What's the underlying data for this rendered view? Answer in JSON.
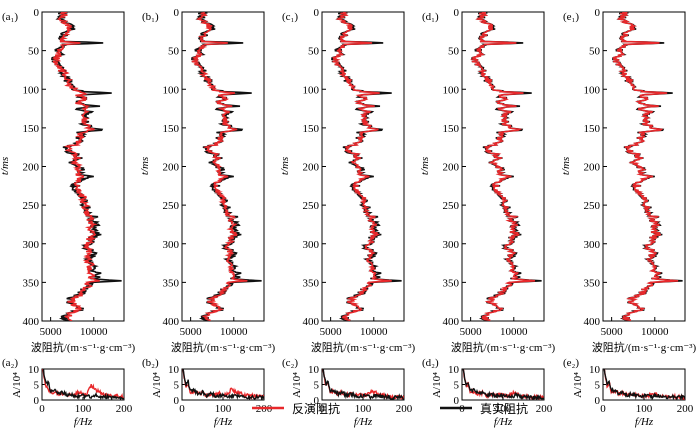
{
  "colors": {
    "inverted": "#e8282b",
    "true": "#111111"
  },
  "legend": {
    "inverted_label": "反演阻抗",
    "true_label": "真实阻抗"
  },
  "impedance_axis": {
    "ylabel": "t/ms",
    "yticks": [
      "0",
      "50",
      "100",
      "150",
      "200",
      "250",
      "300",
      "350",
      "400"
    ],
    "xlabel": "波阻抗/(m·s⁻¹·g·cm⁻³)",
    "xticks": [
      "5000",
      "10000"
    ]
  },
  "spectrum_axis": {
    "ylabel": "A/10⁴",
    "yticks": [
      "0",
      "5",
      "10"
    ],
    "xlabel": "f/Hz",
    "xticks": [
      "0",
      "100",
      "200"
    ]
  },
  "panels": [
    {
      "top_label": "(a₁)",
      "bottom_label": "(a₂)"
    },
    {
      "top_label": "(b₁)",
      "bottom_label": "(b₂)"
    },
    {
      "top_label": "(c₁)",
      "bottom_label": "(c₂)"
    },
    {
      "top_label": "(d₁)",
      "bottom_label": "(d₂)"
    },
    {
      "top_label": "(e₁)",
      "bottom_label": "(e₂)"
    }
  ],
  "chart_data": [
    {
      "type": "line",
      "title": "",
      "xlabel": "波阻抗/(m·s⁻¹·g·cm⁻³)",
      "ylabel": "t/ms",
      "xlim": [
        4000,
        13500
      ],
      "ylim": [
        0,
        400
      ],
      "y_inverted": true,
      "note": "five panels (a1–e1) show the same true-impedance trace with inverted traces of increasing fidelity",
      "series": [
        {
          "name": "真实阻抗",
          "t": [
            0,
            10,
            20,
            30,
            38,
            40,
            42,
            50,
            55,
            60,
            65,
            70,
            75,
            80,
            85,
            90,
            95,
            100,
            103,
            105,
            108,
            112,
            118,
            122,
            125,
            130,
            135,
            140,
            145,
            150,
            153,
            155,
            160,
            165,
            170,
            175,
            180,
            185,
            190,
            195,
            200,
            205,
            210,
            213,
            215,
            220,
            225,
            230,
            235,
            240,
            245,
            250,
            255,
            260,
            265,
            270,
            275,
            280,
            285,
            288,
            290,
            295,
            300,
            305,
            310,
            315,
            320,
            325,
            330,
            335,
            340,
            345,
            348,
            350,
            355,
            360,
            365,
            370,
            375,
            380,
            385,
            390,
            395,
            400
          ],
          "v": [
            6500,
            6000,
            7500,
            6500,
            6200,
            11200,
            6500,
            6000,
            6000,
            5600,
            5500,
            5800,
            6400,
            6600,
            6800,
            7100,
            7200,
            7500,
            8500,
            12000,
            8000,
            9300,
            8000,
            10300,
            8200,
            9600,
            8800,
            9100,
            9000,
            10000,
            11000,
            8500,
            8500,
            8300,
            8100,
            6800,
            7000,
            8000,
            8200,
            7600,
            8400,
            8500,
            8000,
            9500,
            8800,
            8000,
            7900,
            8000,
            8600,
            8700,
            8700,
            9000,
            9200,
            9100,
            10000,
            9800,
            10200,
            9800,
            10000,
            10600,
            10000,
            9500,
            9500,
            9000,
            9800,
            9800,
            9200,
            10000,
            10300,
            10000,
            10600,
            10000,
            13000,
            9500,
            9500,
            8800,
            8500,
            7500,
            7000,
            8000,
            8500,
            7000,
            6500,
            7000
          ]
        },
        {
          "name": "反演阻抗",
          "t": [
            0,
            10,
            20,
            30,
            38,
            40,
            42,
            50,
            55,
            60,
            65,
            70,
            75,
            80,
            85,
            90,
            95,
            100,
            103,
            105,
            108,
            112,
            118,
            122,
            125,
            130,
            135,
            140,
            145,
            150,
            153,
            155,
            160,
            165,
            170,
            175,
            180,
            185,
            190,
            195,
            200,
            205,
            210,
            213,
            215,
            220,
            225,
            230,
            235,
            240,
            245,
            250,
            255,
            260,
            265,
            270,
            275,
            280,
            285,
            288,
            290,
            295,
            300,
            305,
            310,
            315,
            320,
            325,
            330,
            335,
            340,
            345,
            348,
            350,
            355,
            360,
            365,
            370,
            375,
            380,
            385,
            390,
            395,
            400
          ],
          "v": [
            6800,
            6200,
            7200,
            6700,
            6400,
            8200,
            6600,
            6200,
            6000,
            5700,
            5600,
            5900,
            6300,
            6700,
            6900,
            7000,
            7300,
            7700,
            8300,
            9200,
            8200,
            9000,
            8200,
            9600,
            8400,
            9300,
            8900,
            9000,
            9100,
            9500,
            9600,
            8700,
            8600,
            8400,
            8200,
            7100,
            7200,
            7900,
            8100,
            7800,
            8300,
            8400,
            8100,
            8700,
            8600,
            8100,
            8000,
            8100,
            8500,
            8600,
            8700,
            8900,
            9100,
            9000,
            9600,
            9500,
            9700,
            9600,
            9800,
            9900,
            9700,
            9400,
            9400,
            9100,
            9500,
            9500,
            9200,
            9600,
            9700,
            9600,
            9800,
            9800,
            10400,
            9500,
            9300,
            8900,
            8600,
            7700,
            7300,
            8000,
            8300,
            7300,
            6800,
            7200
          ]
        }
      ]
    },
    {
      "type": "line",
      "title": "",
      "xlabel": "f/Hz",
      "ylabel": "A/10⁴",
      "xlim": [
        0,
        200
      ],
      "ylim": [
        0,
        10
      ],
      "note": "amplitude spectra (a2–e2); spectra continue above the visible range near f≈0",
      "series": [
        {
          "name": "真实阻抗",
          "f": [
            0,
            5,
            10,
            15,
            20,
            30,
            40,
            50,
            60,
            70,
            80,
            90,
            100,
            110,
            120,
            130,
            140,
            150,
            160,
            170,
            180,
            190,
            200
          ],
          "A": [
            14,
            8,
            5,
            6,
            3,
            3,
            2,
            2.5,
            1.5,
            2,
            1.5,
            1.2,
            1.4,
            1.2,
            1,
            1.5,
            1.2,
            1.1,
            1,
            0.9,
            0.8,
            0.9,
            0.6
          ]
        },
        {
          "name": "反演阻抗",
          "f": [
            0,
            5,
            10,
            15,
            20,
            30,
            40,
            50,
            60,
            70,
            80,
            90,
            100,
            110,
            120,
            130,
            140,
            150,
            160,
            170,
            180,
            190,
            200
          ],
          "A": [
            12,
            7,
            4,
            3.5,
            2.5,
            2.2,
            2,
            2,
            1.6,
            1.8,
            1.7,
            2.5,
            1.8,
            2.2,
            4.5,
            3.5,
            2.5,
            2,
            1.6,
            1.4,
            1.2,
            1.2,
            1
          ]
        }
      ]
    }
  ]
}
